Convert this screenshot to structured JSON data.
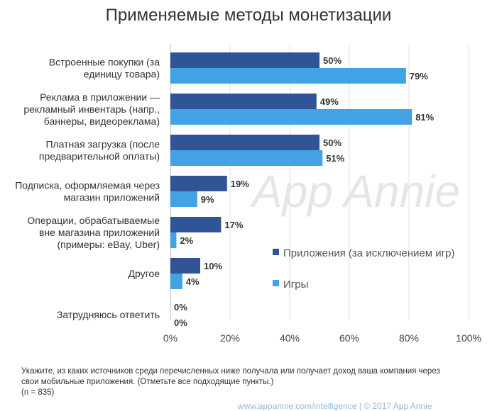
{
  "chart_data": {
    "type": "bar",
    "orientation": "horizontal",
    "title": "Применяемые методы монетизации",
    "categories": [
      [
        "Встроенные покупки (за",
        "единицу товара)"
      ],
      [
        "Реклама в приложении —",
        "рекламный инвентарь (напр.,",
        "баннеры, видеореклама)"
      ],
      [
        "Платная загрузка (после",
        "предварительной оплаты)"
      ],
      [
        "Подписка, оформляемая через",
        "магазин приложений"
      ],
      [
        "Операции, обрабатываемые",
        "вне магазина приложений",
        "(примеры: eBay, Uber)"
      ],
      [
        "Другое"
      ],
      [
        "Затрудняюсь ответить"
      ]
    ],
    "series": [
      {
        "name": "Приложения (за исключением игр)",
        "color": "#2f5597",
        "values": [
          50,
          49,
          50,
          19,
          17,
          10,
          0
        ]
      },
      {
        "name": "Игры",
        "color": "#41a2e6",
        "values": [
          79,
          81,
          51,
          9,
          2,
          4,
          0
        ]
      }
    ],
    "value_suffix": "%",
    "xlim": [
      0,
      100
    ],
    "xticks": [
      0,
      20,
      40,
      60,
      80,
      100
    ],
    "xtick_labels": [
      "0%",
      "20%",
      "40%",
      "60%",
      "80%",
      "100%"
    ],
    "legend_position": "right",
    "watermark": "App Annie"
  },
  "footnote": {
    "lines": [
      "Укажите, из каких источников среди перечисленных ниже получала или получает доход ваша компания через",
      "свои мобильные приложения. (Отметьте все подходящие пункты.)",
      "(n = 835)"
    ]
  },
  "source": "www.appannie.com/intelligence   |   © 2017 App Annie"
}
